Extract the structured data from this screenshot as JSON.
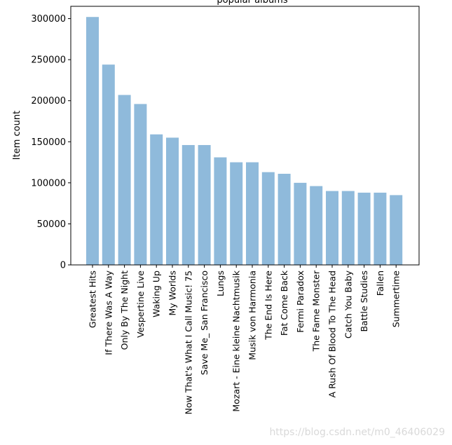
{
  "chart_data": {
    "type": "bar",
    "title": "popular albums",
    "xlabel": "",
    "ylabel": "Item count",
    "ylim": [
      0,
      315000
    ],
    "yticks": [
      0,
      50000,
      100000,
      150000,
      200000,
      250000,
      300000
    ],
    "bar_color": "#8fbadb",
    "categories": [
      "Greatest Hits",
      "If There Was A Way",
      "Only By The Night",
      "Vespertine Live",
      "Waking Up",
      "My Worlds",
      "Now That's What I Call Music! 75",
      "Save Me_ San Francisco",
      "Lungs",
      "Mozart - Eine kleine Nachtmusik",
      "Musik von Harmonia",
      "The End Is Here",
      "Fat Come Back",
      "Fermi Paradox",
      "The Fame Monster",
      "A Rush Of Blood To The Head",
      "Catch You Baby",
      "Battle Studies",
      "Fallen",
      "Summertime"
    ],
    "values": [
      302000,
      244000,
      207000,
      196000,
      159000,
      155000,
      146000,
      146000,
      131000,
      125000,
      125000,
      113000,
      111000,
      100000,
      96000,
      90000,
      90000,
      88000,
      88000,
      85000
    ]
  },
  "watermark": "https://blog.csdn.net/m0_46406029"
}
